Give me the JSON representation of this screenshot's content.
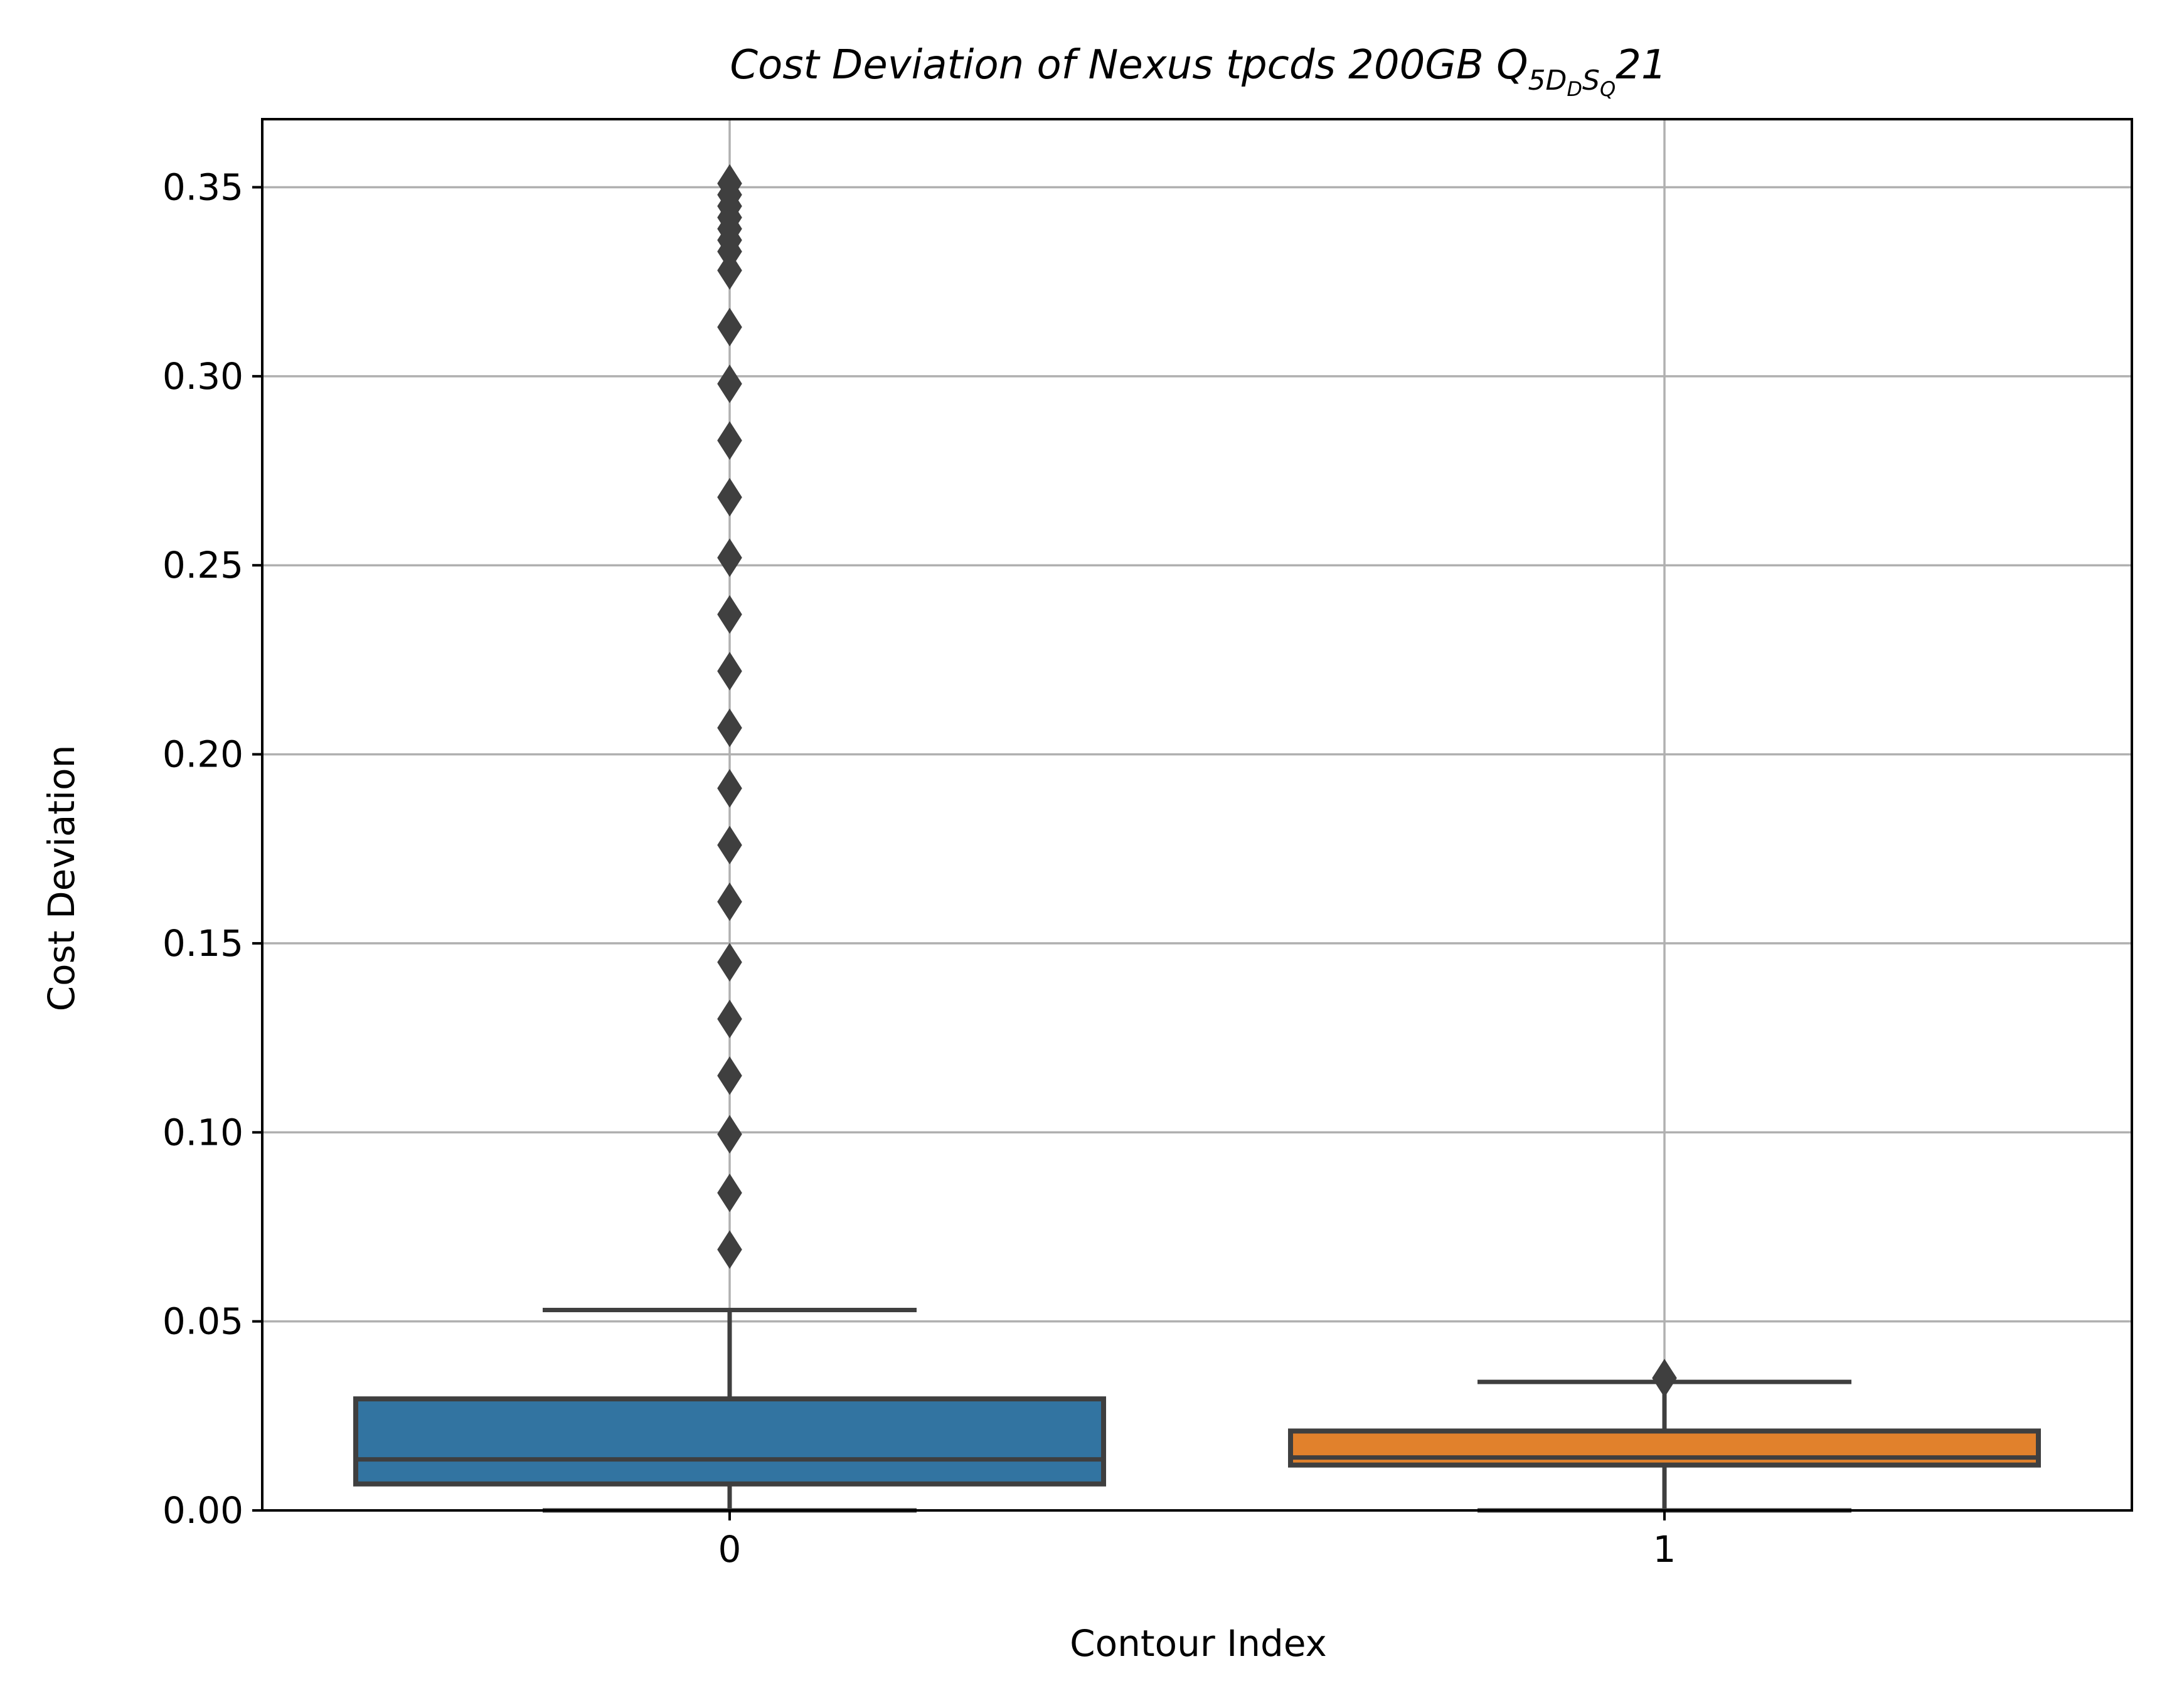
{
  "chart_data": {
    "type": "box",
    "title": {
      "main": "Cost Deviation of Nexus tpcds  200GB  ",
      "q_letter": "Q",
      "q_subscript_main": "5D",
      "q_subscript_sub1": "D",
      "q_subscript_mid": "S",
      "q_subscript_sub2": "Q",
      "q_suffix": "21"
    },
    "xlabel": "Contour Index",
    "ylabel": "Cost Deviation",
    "ylim": [
      0.0,
      0.368
    ],
    "y_ticks": [
      0.0,
      0.05,
      0.1,
      0.15,
      0.2,
      0.25,
      0.3,
      0.35
    ],
    "y_tick_labels": [
      "0.00",
      "0.05",
      "0.10",
      "0.15",
      "0.20",
      "0.25",
      "0.30",
      "0.35"
    ],
    "categories": [
      "0",
      "1"
    ],
    "grid": true,
    "boxes": [
      {
        "category": "0",
        "color": "#3274a1",
        "whisker_low": 0.0,
        "q1": 0.007,
        "median": 0.0135,
        "q3": 0.0295,
        "whisker_high": 0.053,
        "outliers": [
          0.069,
          0.084,
          0.0995,
          0.115,
          0.13,
          0.145,
          0.161,
          0.176,
          0.191,
          0.207,
          0.222,
          0.237,
          0.252,
          0.268,
          0.283,
          0.298,
          0.313,
          0.328,
          0.333,
          0.336,
          0.339,
          0.342,
          0.345,
          0.348,
          0.351
        ]
      },
      {
        "category": "1",
        "color": "#e1812c",
        "whisker_low": 0.0,
        "q1": 0.012,
        "median": 0.014,
        "q3": 0.021,
        "whisker_high": 0.034,
        "outliers": [
          0.035
        ]
      }
    ]
  }
}
